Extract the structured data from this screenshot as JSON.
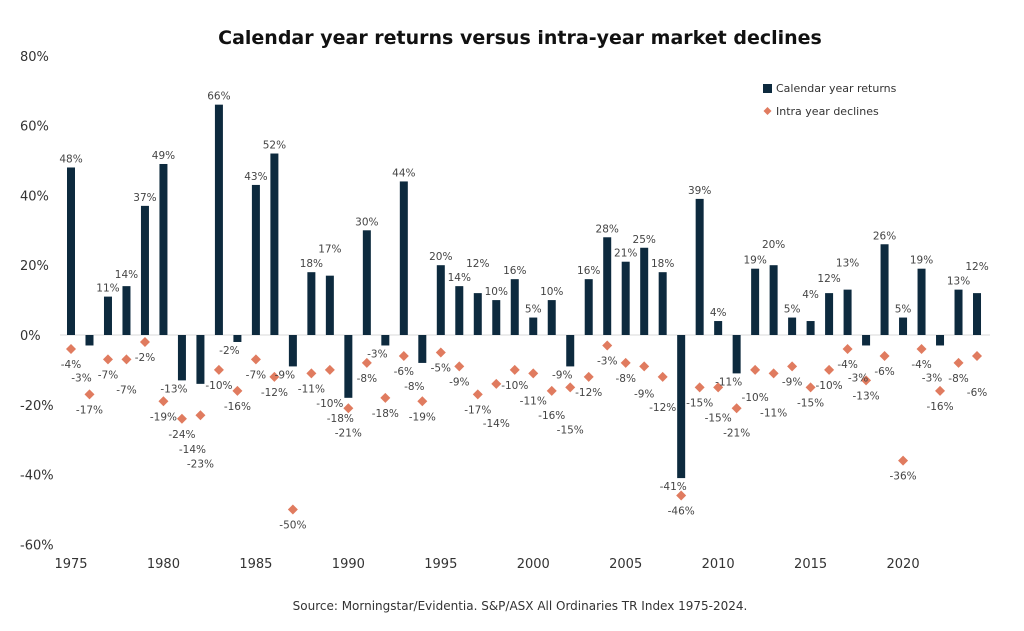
{
  "chart_data": {
    "type": "bar",
    "title": "Calendar year returns versus intra-year market declines",
    "source": "Source: Morningstar/Evidentia. S&P/ASX All Ordinaries TR Index 1975-2024.",
    "xlabel": "",
    "ylabel": "",
    "ylim": [
      -60,
      80
    ],
    "yticks": [
      80,
      60,
      40,
      20,
      0,
      -20,
      -40,
      -60
    ],
    "ytick_labels": [
      "80%",
      "60%",
      "40%",
      "20%",
      "0%",
      "-20%",
      "-40%",
      "-60%"
    ],
    "xtick_labels": [
      "1975",
      "1980",
      "1985",
      "1990",
      "1995",
      "2000",
      "2005",
      "2010",
      "2015",
      "2020"
    ],
    "legend_position": "top-right",
    "grid": false,
    "categories": [
      1975,
      1976,
      1977,
      1978,
      1979,
      1980,
      1981,
      1982,
      1983,
      1984,
      1985,
      1986,
      1987,
      1988,
      1989,
      1990,
      1991,
      1992,
      1993,
      1994,
      1995,
      1996,
      1997,
      1998,
      1999,
      2000,
      2001,
      2002,
      2003,
      2004,
      2005,
      2006,
      2007,
      2008,
      2009,
      2010,
      2011,
      2012,
      2013,
      2014,
      2015,
      2016,
      2017,
      2018,
      2019,
      2020,
      2021,
      2022,
      2023,
      2024
    ],
    "series": [
      {
        "name": "Calendar year returns",
        "type": "bar",
        "color": "#0d2a3e",
        "values": [
          48,
          -3,
          11,
          14,
          37,
          49,
          -13,
          -14,
          66,
          -2,
          43,
          52,
          -9,
          18,
          17,
          -18,
          30,
          -3,
          44,
          -8,
          20,
          14,
          12,
          10,
          16,
          5,
          10,
          -9,
          16,
          28,
          21,
          25,
          18,
          -41,
          39,
          4,
          -11,
          19,
          20,
          5,
          4,
          12,
          13,
          -3,
          26,
          5,
          19,
          -3,
          13,
          12
        ]
      },
      {
        "name": "Intra year declines",
        "type": "scatter",
        "marker": "diamond",
        "color": "#e07b5f",
        "values": [
          -4,
          -17,
          -7,
          -7,
          -2,
          -19,
          -24,
          -23,
          -10,
          -16,
          -7,
          -12,
          -50,
          -11,
          -10,
          -21,
          -8,
          -18,
          -6,
          -19,
          -5,
          -9,
          -17,
          -14,
          -10,
          -11,
          -16,
          -15,
          -12,
          -3,
          -8,
          -9,
          -12,
          -46,
          -15,
          -15,
          -21,
          -10,
          -11,
          -9,
          -15,
          -10,
          -4,
          -13,
          -6,
          -36,
          -4,
          -16,
          -8,
          -6
        ]
      }
    ]
  }
}
